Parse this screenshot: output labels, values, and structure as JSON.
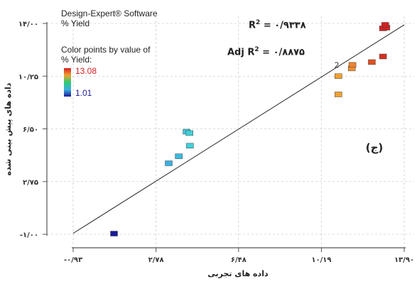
{
  "info": {
    "software": "Design-Expert® Software",
    "response": "% Yield",
    "color_title_1": "Color points by value of",
    "color_title_2": "% Yield:",
    "color_max": "13.08",
    "color_min": "1.01"
  },
  "stats": {
    "r2_label": "R",
    "r2_value": "= ۰/۹۳۳۸",
    "adj_prefix": "Adj R",
    "adj_value": "= ۰/۸۸۷۵"
  },
  "panel_label": "(ج)",
  "colors": {
    "scale_low": "#1a1a9a",
    "scale_low_mid": "#3ab0e0",
    "scale_mid": "#2ecc71",
    "scale_high_mid": "#f0a030",
    "scale_high": "#d42020",
    "fit_line": "#222222",
    "axis": "#555555"
  },
  "chart_data": {
    "type": "scatter",
    "xlabel": "داده های تجربی",
    "ylabel": "داده های پیش بینی شده",
    "xlim": [
      -0.93,
      13.9
    ],
    "ylim": [
      -1.0,
      14.0
    ],
    "x_tick_values": [
      -0.93,
      2.78,
      6.48,
      10.19,
      13.9
    ],
    "x_tick_labels": [
      "-۰/۹۳",
      "۲/۷۸",
      "۶/۴۸",
      "۱۰/۱۹",
      "۱۳/۹۰"
    ],
    "y_tick_values": [
      -1.0,
      2.75,
      6.5,
      10.25,
      14.0
    ],
    "y_tick_labels": [
      "-۱/۰۰",
      "۲/۷۵",
      "۶/۵۰",
      "۱۰/۲۵",
      "۱۴/۰۰"
    ],
    "fit_line": {
      "x": [
        -0.93,
        13.9
      ],
      "y": [
        -0.93,
        13.9
      ]
    },
    "point_annotations": [
      {
        "text": "2",
        "x": 11.2,
        "y": 11.05
      }
    ],
    "series": [
      {
        "points": [
          {
            "x": 0.9,
            "y": -0.95,
            "color": "#1a1a9a"
          },
          {
            "x": 3.35,
            "y": 4.05,
            "color": "#3ab0e0"
          },
          {
            "x": 3.8,
            "y": 4.55,
            "color": "#3ab8e0"
          },
          {
            "x": 4.15,
            "y": 6.3,
            "color": "#3cc8e0"
          },
          {
            "x": 4.28,
            "y": 6.2,
            "color": "#40d0d8"
          },
          {
            "x": 4.3,
            "y": 5.3,
            "color": "#40d0d8"
          },
          {
            "x": 10.95,
            "y": 8.95,
            "color": "#f0a030"
          },
          {
            "x": 10.95,
            "y": 10.25,
            "color": "#f0a030"
          },
          {
            "x": 11.55,
            "y": 10.8,
            "color": "#f09030"
          },
          {
            "x": 11.58,
            "y": 11.05,
            "color": "#f08030"
          },
          {
            "x": 12.45,
            "y": 11.25,
            "color": "#e05020"
          },
          {
            "x": 12.95,
            "y": 11.65,
            "color": "#d43020"
          },
          {
            "x": 12.95,
            "y": 13.65,
            "color": "#d42020"
          },
          {
            "x": 13.1,
            "y": 13.7,
            "color": "#d42020"
          },
          {
            "x": 13.05,
            "y": 13.9,
            "color": "#d42020"
          }
        ]
      }
    ]
  }
}
